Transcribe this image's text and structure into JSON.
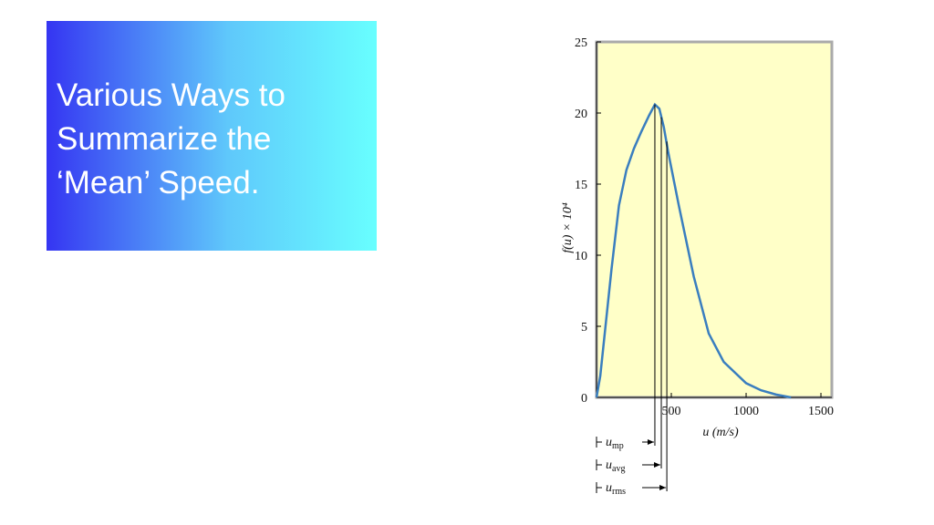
{
  "slide": {
    "title": "Various Ways to Summarize the ‘Mean’ Speed."
  },
  "chart_data": {
    "type": "line",
    "x_label": "u (m/s)",
    "y_label": "f(u) × 10⁴",
    "x": [
      0,
      25,
      50,
      100,
      150,
      200,
      250,
      300,
      350,
      390,
      420,
      450,
      480,
      550,
      650,
      750,
      850,
      1000,
      1100,
      1200,
      1300
    ],
    "series": [
      {
        "color": "#3a7ebf",
        "values": [
          0,
          1.5,
          4,
          9,
          13.5,
          16,
          17.5,
          18.7,
          19.8,
          20.6,
          20.3,
          19,
          17.2,
          13.5,
          8.5,
          4.5,
          2.5,
          1.0,
          0.5,
          0.2,
          0
        ]
      }
    ],
    "xlim": [
      0,
      1573
    ],
    "xticks": [
      500,
      1000,
      1500
    ],
    "ylim": [
      0,
      25
    ],
    "yticks": [
      0,
      5,
      10,
      15,
      20,
      25
    ],
    "background": "#ffffc8",
    "markers": [
      {
        "symbol": "u",
        "subscript": "mp",
        "value": 390,
        "height": 20.6
      },
      {
        "symbol": "u",
        "subscript": "avg",
        "value": 433,
        "height": 19.7
      },
      {
        "symbol": "u",
        "subscript": "rms",
        "value": 470,
        "height": 18.0
      }
    ]
  }
}
